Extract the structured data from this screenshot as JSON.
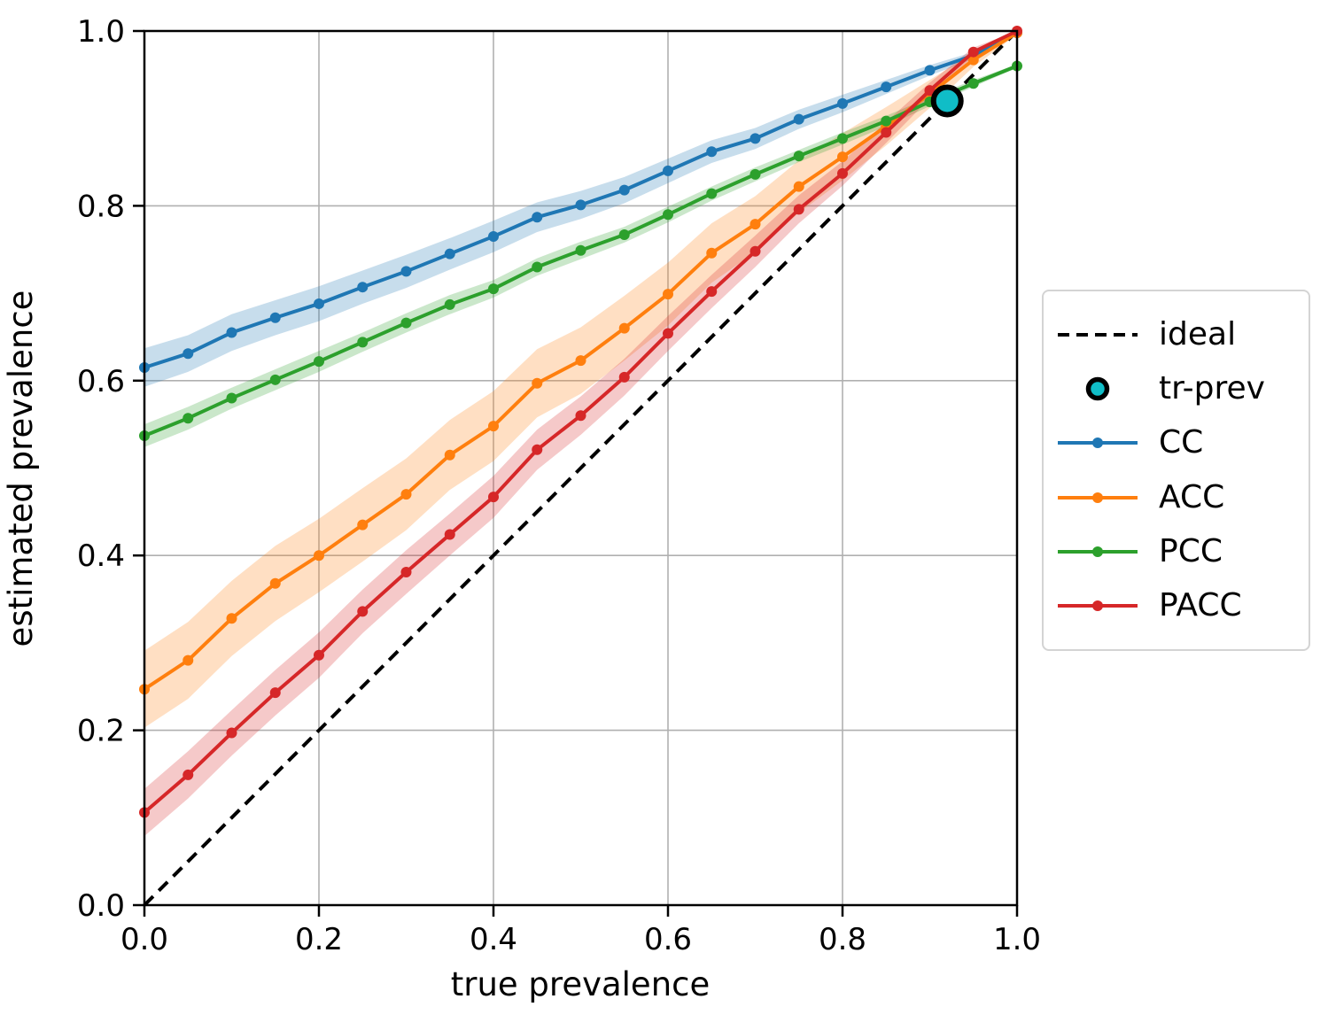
{
  "figure": {
    "xlabel": "true prevalence",
    "ylabel": "estimated prevalence",
    "background": "#ffffff",
    "grid_color": "#b0b0b0",
    "spine_color": "#000000"
  },
  "legend": {
    "items": [
      {
        "label": "ideal",
        "type": "dashed-line",
        "color": "#000000"
      },
      {
        "label": "tr-prev",
        "type": "circle",
        "color": "#10bdc7",
        "edge": "#000000"
      },
      {
        "label": "CC",
        "type": "line-dot",
        "color": "#1f77b4"
      },
      {
        "label": "ACC",
        "type": "line-dot",
        "color": "#ff7f0e"
      },
      {
        "label": "PCC",
        "type": "line-dot",
        "color": "#2ca02c"
      },
      {
        "label": "PACC",
        "type": "line-dot",
        "color": "#d62728"
      }
    ]
  },
  "chart_data": {
    "type": "line",
    "title": "",
    "xlabel": "true prevalence",
    "ylabel": "estimated prevalence",
    "xlim": [
      0,
      1
    ],
    "ylim": [
      0,
      1
    ],
    "grid": true,
    "legend_position": "right outside",
    "x_ticks": [
      0.0,
      0.2,
      0.4,
      0.6,
      0.8,
      1.0
    ],
    "y_ticks": [
      0.0,
      0.2,
      0.4,
      0.6,
      0.8,
      1.0
    ],
    "x_tick_labels": [
      "0.0",
      "0.2",
      "0.4",
      "0.6",
      "0.8",
      "1.0"
    ],
    "y_tick_labels": [
      "0.0",
      "0.2",
      "0.4",
      "0.6",
      "0.8",
      "1.0"
    ],
    "x": [
      0.0,
      0.05,
      0.1,
      0.15,
      0.2,
      0.25,
      0.3,
      0.35,
      0.4,
      0.45,
      0.5,
      0.55,
      0.6,
      0.65,
      0.7,
      0.75,
      0.8,
      0.85,
      0.9,
      0.95,
      1.0
    ],
    "series": [
      {
        "name": "CC",
        "color": "#1f77b4",
        "values": [
          0.615,
          0.631,
          0.655,
          0.672,
          0.688,
          0.707,
          0.725,
          0.745,
          0.765,
          0.787,
          0.801,
          0.818,
          0.84,
          0.862,
          0.877,
          0.899,
          0.917,
          0.936,
          0.955,
          0.972,
          0.998
        ],
        "band_halfwidth": [
          0.022,
          0.021,
          0.021,
          0.02,
          0.02,
          0.019,
          0.019,
          0.018,
          0.018,
          0.017,
          0.016,
          0.015,
          0.014,
          0.013,
          0.012,
          0.011,
          0.01,
          0.008,
          0.006,
          0.004,
          0.002
        ]
      },
      {
        "name": "ACC",
        "color": "#ff7f0e",
        "values": [
          0.247,
          0.28,
          0.328,
          0.368,
          0.4,
          0.435,
          0.47,
          0.515,
          0.548,
          0.597,
          0.623,
          0.66,
          0.699,
          0.746,
          0.779,
          0.822,
          0.856,
          0.891,
          0.928,
          0.967,
          0.998
        ],
        "band_halfwidth": [
          0.044,
          0.044,
          0.043,
          0.043,
          0.042,
          0.042,
          0.041,
          0.04,
          0.04,
          0.039,
          0.038,
          0.037,
          0.036,
          0.034,
          0.032,
          0.03,
          0.027,
          0.022,
          0.016,
          0.008,
          0.002
        ]
      },
      {
        "name": "PCC",
        "color": "#2ca02c",
        "values": [
          0.537,
          0.557,
          0.58,
          0.601,
          0.622,
          0.644,
          0.666,
          0.687,
          0.705,
          0.73,
          0.749,
          0.767,
          0.79,
          0.814,
          0.836,
          0.857,
          0.877,
          0.897,
          0.919,
          0.94,
          0.96
        ],
        "band_halfwidth": [
          0.013,
          0.013,
          0.012,
          0.012,
          0.012,
          0.011,
          0.011,
          0.011,
          0.01,
          0.01,
          0.01,
          0.009,
          0.009,
          0.008,
          0.008,
          0.007,
          0.007,
          0.006,
          0.005,
          0.004,
          0.002
        ]
      },
      {
        "name": "PACC",
        "color": "#d62728",
        "values": [
          0.106,
          0.149,
          0.197,
          0.243,
          0.286,
          0.336,
          0.381,
          0.424,
          0.467,
          0.521,
          0.56,
          0.604,
          0.654,
          0.702,
          0.748,
          0.796,
          0.837,
          0.884,
          0.932,
          0.976,
          1.0
        ],
        "band_halfwidth": [
          0.027,
          0.027,
          0.026,
          0.026,
          0.026,
          0.025,
          0.025,
          0.024,
          0.024,
          0.023,
          0.022,
          0.021,
          0.02,
          0.019,
          0.018,
          0.016,
          0.014,
          0.012,
          0.009,
          0.005,
          0.001
        ]
      }
    ],
    "ideal_line": {
      "label": "ideal",
      "from": [
        0,
        0
      ],
      "to": [
        1,
        1
      ],
      "color": "#000000",
      "style": "dashed"
    },
    "tr_prev_point": {
      "label": "tr-prev",
      "x": 0.92,
      "y": 0.92,
      "color": "#10bdc7",
      "edge": "#000000"
    }
  }
}
